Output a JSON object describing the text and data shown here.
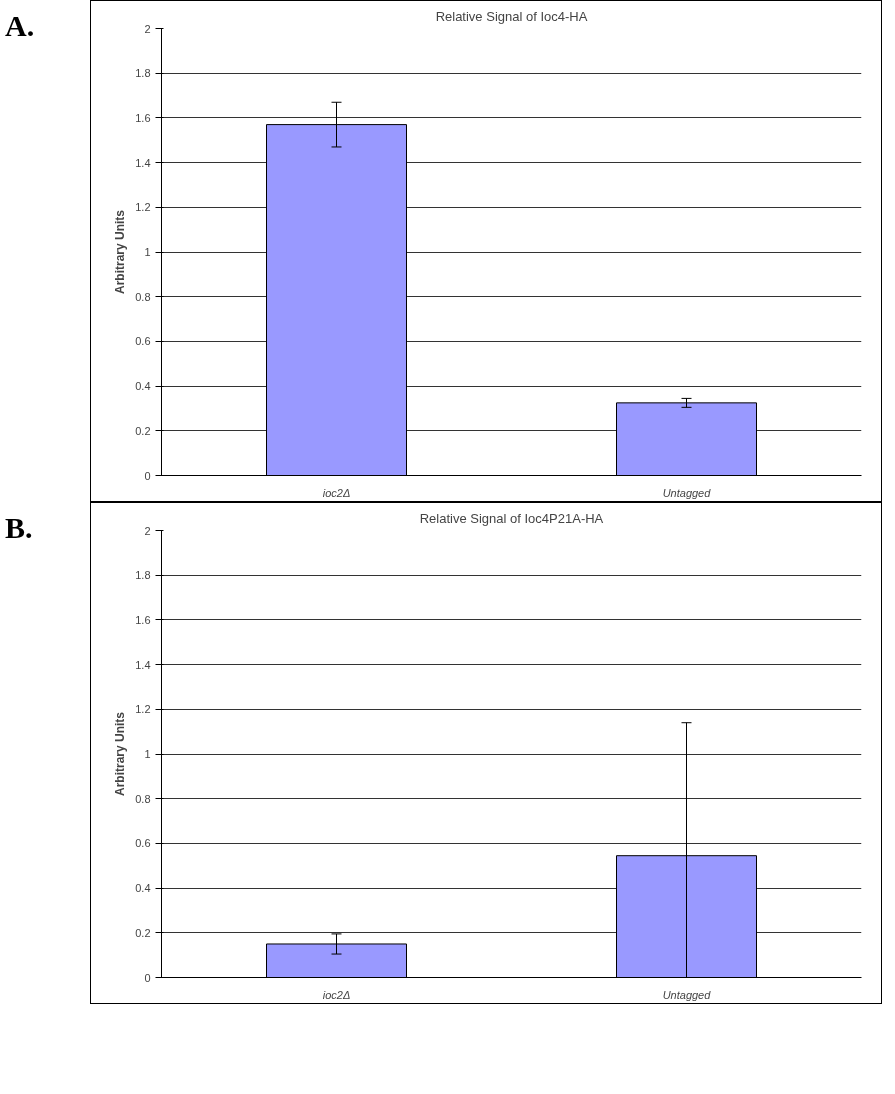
{
  "chart_data": [
    {
      "type": "bar",
      "title": "Relative Signal of Ioc4-HA",
      "ylabel": "Arbitrary Units",
      "annotations": [
        "A."
      ],
      "categories": [
        "ioc2Δ",
        "Untagged"
      ],
      "values": [
        1.57,
        0.325
      ],
      "errors": [
        [
          1.47,
          1.67
        ],
        [
          0.305,
          0.345
        ]
      ],
      "color": "#9999ff",
      "ylim": [
        0,
        2
      ],
      "yticks": [
        0,
        0.2,
        0.4,
        0.6,
        0.8,
        1,
        1.2,
        1.4,
        1.6,
        1.8,
        2
      ],
      "grid": "y"
    },
    {
      "type": "bar",
      "title": "Relative Signal of Ioc4P21A-HA",
      "ylabel": "Arbitrary Units",
      "annotations": [
        "B."
      ],
      "categories": [
        "ioc2Δ",
        "Untagged"
      ],
      "values": [
        0.15,
        0.545
      ],
      "errors": [
        [
          0.105,
          0.195
        ],
        [
          0,
          1.14
        ]
      ],
      "color": "#9999ff",
      "ylim": [
        0,
        2
      ],
      "yticks": [
        0,
        0.2,
        0.4,
        0.6,
        0.8,
        1,
        1.2,
        1.4,
        1.6,
        1.8,
        2
      ],
      "grid": "y"
    }
  ]
}
